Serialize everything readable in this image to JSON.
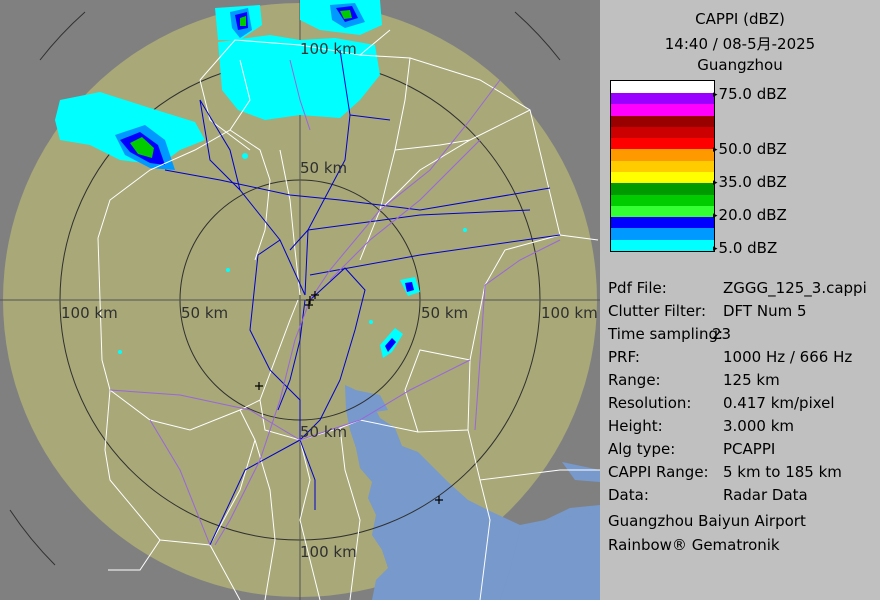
{
  "header": {
    "product": "CAPPI (dBZ)",
    "datetime": "14:40 / 08-5月-2025",
    "site": "Guangzhou"
  },
  "legend": {
    "colors": [
      "#ffffff",
      "#9900ff",
      "#ff00ff",
      "#990000",
      "#cc0000",
      "#ff0000",
      "#ff9900",
      "#ffcc00",
      "#ffff00",
      "#009900",
      "#00cc00",
      "#33ff33",
      "#0000ff",
      "#0099ff",
      "#00ffff"
    ],
    "labels": [
      "75.0 dBZ",
      "50.0 dBZ",
      "35.0 dBZ",
      "20.0 dBZ",
      "5.0 dBZ"
    ]
  },
  "info": {
    "rows": [
      {
        "key": "Pdf File:",
        "value": "ZGGG_125_3.cappi"
      },
      {
        "key": "Clutter Filter:",
        "value": "DFT Num 5"
      },
      {
        "key": "Time sampling:",
        "value": "23"
      },
      {
        "key": "PRF:",
        "value": "1000 Hz / 666 Hz"
      },
      {
        "key": "Range:",
        "value": "125 km"
      },
      {
        "key": "Resolution:",
        "value": "0.417 km/pixel"
      },
      {
        "key": "Height:",
        "value": "3.000 km"
      },
      {
        "key": "Alg type:",
        "value": "PCAPPI"
      },
      {
        "key": "CAPPI Range:",
        "value": "5 km to 185 km"
      },
      {
        "key": "Data:",
        "value": "Radar Data"
      }
    ],
    "airport": "Guangzhou Baiyun Airport",
    "vendor": "Rainbow® Gematronik"
  },
  "map": {
    "range_labels": {
      "north_100": "100 km",
      "north_50": "50 km",
      "west_100": "100 km",
      "west_50": "50 km",
      "east_50": "50 km",
      "east_100": "100 km",
      "south_50": "50 km",
      "south_100": "100 km"
    },
    "colors": {
      "outside": "#808080",
      "coverage": "#a8a878",
      "water": "#7799cc",
      "rings": "#303030",
      "boundary": "#ffffff",
      "route_blue": "#0000cc",
      "route_purple": "#9966dd"
    }
  }
}
